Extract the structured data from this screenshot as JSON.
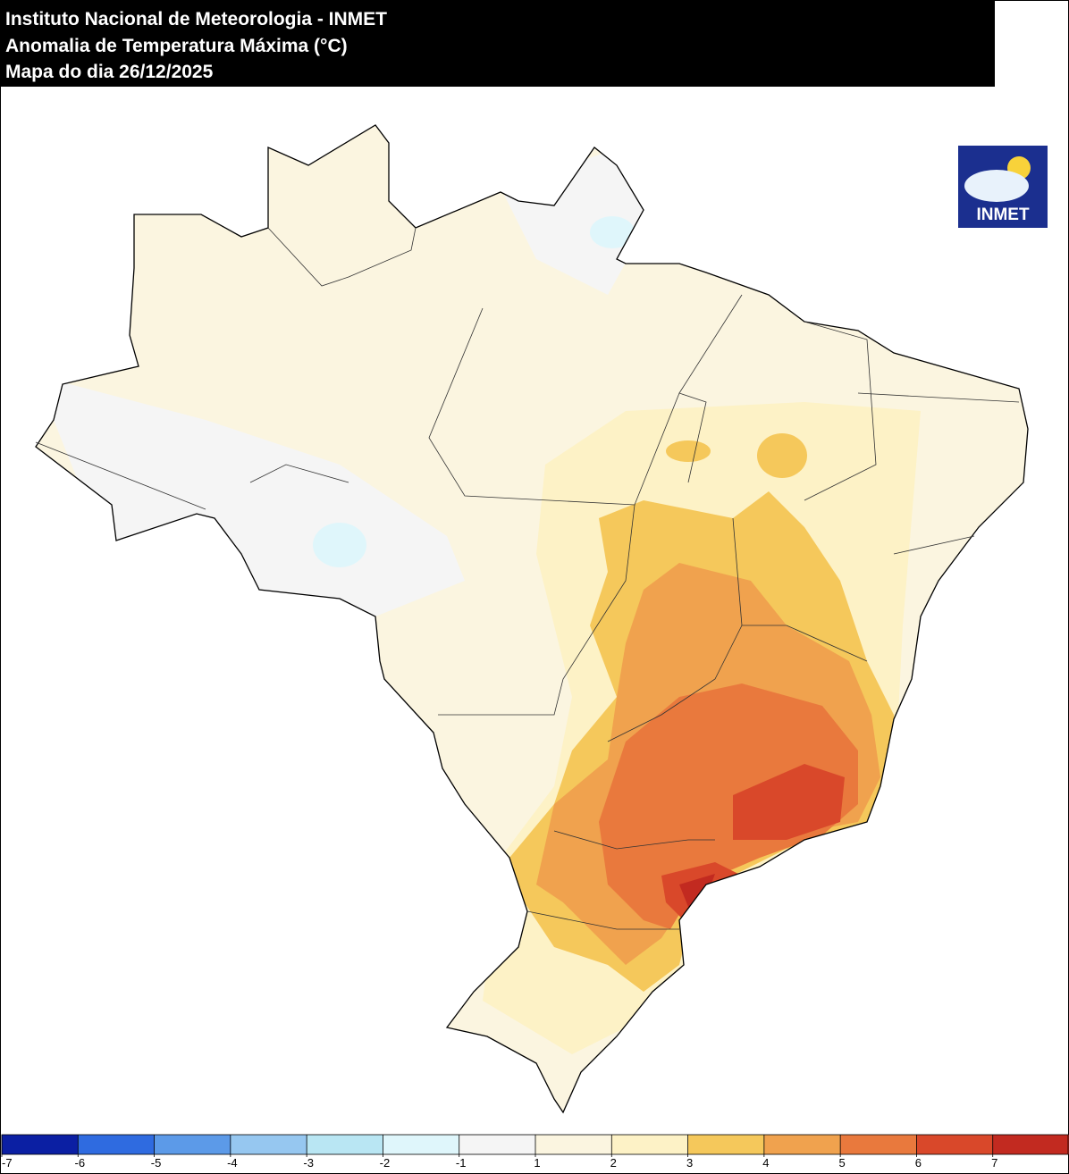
{
  "header": {
    "lines": [
      "Instituto Nacional de Meteorologia - INMET",
      "Anomalia de Temperatura Máxima (°C)",
      "Mapa do dia 26/12/2025"
    ]
  },
  "logo": {
    "text": "INMET"
  },
  "colorbar": {
    "colors": [
      "#0b1fa3",
      "#2f6be0",
      "#5c9ae8",
      "#96c7f0",
      "#b9e6f3",
      "#dff6fb",
      "#f5f5f5",
      "#fbf5e0",
      "#fdf2c6",
      "#f5c85b",
      "#f0a24e",
      "#e9793d",
      "#d9482a",
      "#c22a20"
    ],
    "ticks": [
      -7,
      -6,
      -5,
      -4,
      -3,
      -2,
      -1,
      1,
      2,
      3,
      4,
      5,
      6,
      7
    ]
  }
}
